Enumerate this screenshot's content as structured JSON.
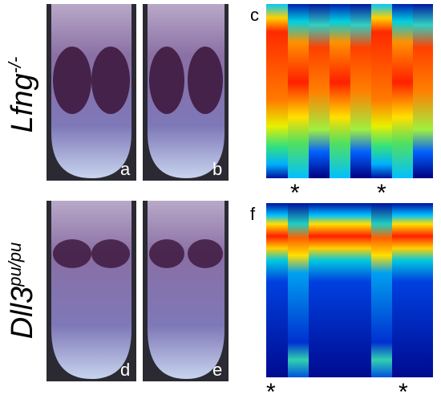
{
  "rows": [
    {
      "label": {
        "base": "Lfng",
        "sup": "-/-"
      },
      "panels": [
        "a",
        "b",
        "c"
      ],
      "asterisks": [
        "*",
        "*"
      ]
    },
    {
      "label": {
        "base": "Dll3",
        "sup": "pu/pu"
      },
      "panels": [
        "d",
        "e",
        "f"
      ],
      "asterisks": [
        "*",
        "*"
      ]
    }
  ]
}
